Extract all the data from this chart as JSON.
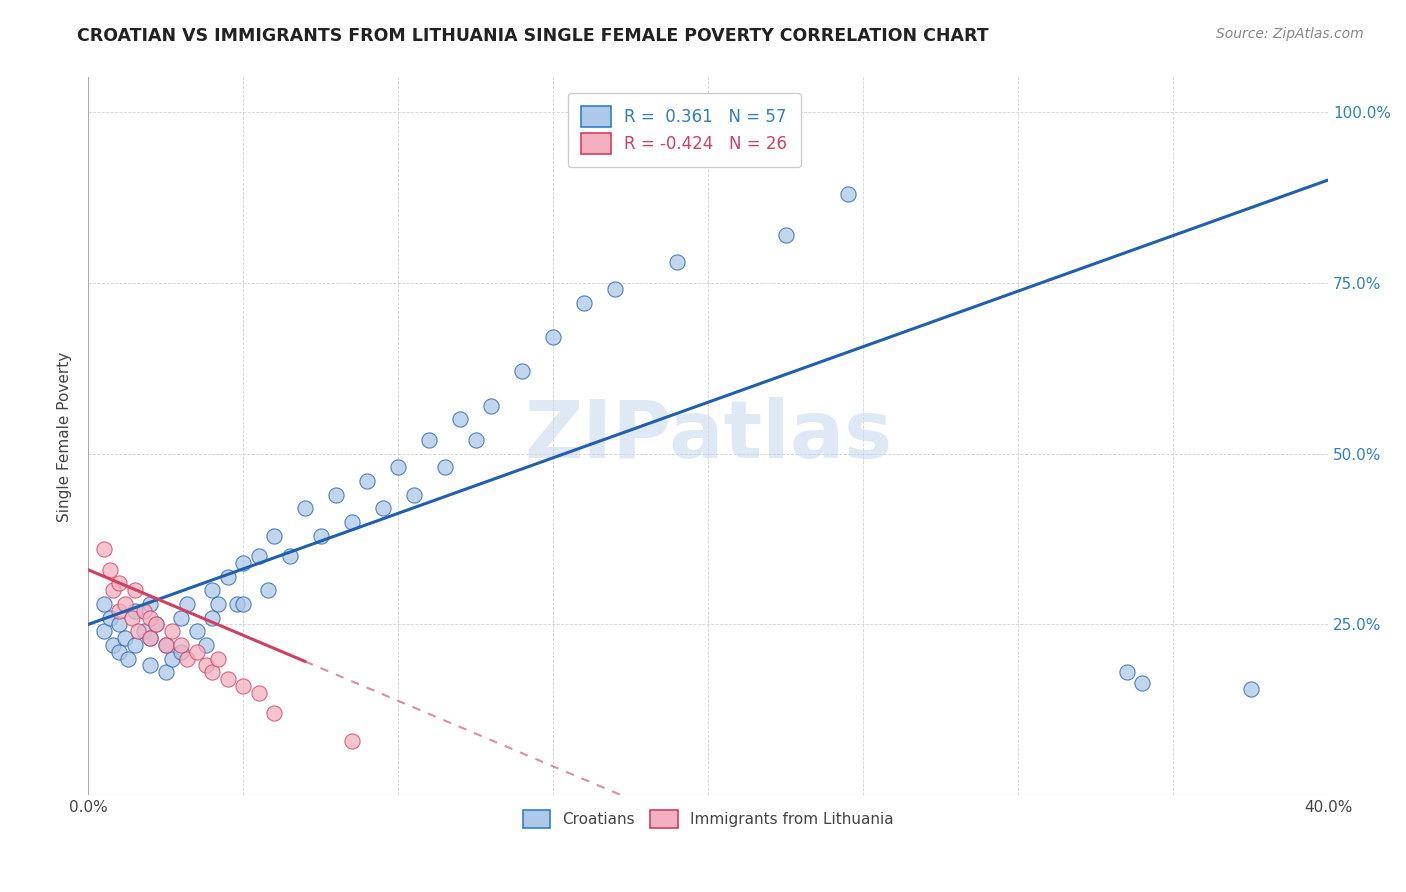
{
  "title": "CROATIAN VS IMMIGRANTS FROM LITHUANIA SINGLE FEMALE POVERTY CORRELATION CHART",
  "source": "Source: ZipAtlas.com",
  "ylabel": "Single Female Poverty",
  "xlim": [
    0.0,
    0.4
  ],
  "ylim": [
    0.0,
    1.05
  ],
  "R_croatian": 0.361,
  "N_croatian": 57,
  "R_lithuania": -0.424,
  "N_lithuania": 26,
  "croatian_color": "#adc8e8",
  "lithuania_color": "#f4afc0",
  "line_croatian_color": "#2060b0",
  "line_lithuania_color": "#d04060",
  "watermark": "ZIPatlas",
  "croatian_x": [
    0.005,
    0.005,
    0.007,
    0.008,
    0.01,
    0.01,
    0.012,
    0.013,
    0.015,
    0.015,
    0.018,
    0.02,
    0.02,
    0.02,
    0.022,
    0.025,
    0.025,
    0.027,
    0.03,
    0.03,
    0.032,
    0.035,
    0.038,
    0.04,
    0.04,
    0.042,
    0.045,
    0.048,
    0.05,
    0.05,
    0.055,
    0.058,
    0.06,
    0.065,
    0.07,
    0.075,
    0.08,
    0.085,
    0.09,
    0.095,
    0.1,
    0.105,
    0.11,
    0.115,
    0.12,
    0.125,
    0.13,
    0.14,
    0.15,
    0.16,
    0.17,
    0.19,
    0.225,
    0.245,
    0.335,
    0.34,
    0.375
  ],
  "croatian_y": [
    0.28,
    0.24,
    0.26,
    0.22,
    0.25,
    0.21,
    0.23,
    0.2,
    0.27,
    0.22,
    0.24,
    0.28,
    0.23,
    0.19,
    0.25,
    0.22,
    0.18,
    0.2,
    0.26,
    0.21,
    0.28,
    0.24,
    0.22,
    0.3,
    0.26,
    0.28,
    0.32,
    0.28,
    0.34,
    0.28,
    0.35,
    0.3,
    0.38,
    0.35,
    0.42,
    0.38,
    0.44,
    0.4,
    0.46,
    0.42,
    0.48,
    0.44,
    0.52,
    0.48,
    0.55,
    0.52,
    0.57,
    0.62,
    0.67,
    0.72,
    0.74,
    0.78,
    0.82,
    0.88,
    0.18,
    0.165,
    0.155
  ],
  "lithuania_x": [
    0.005,
    0.007,
    0.008,
    0.01,
    0.01,
    0.012,
    0.014,
    0.015,
    0.016,
    0.018,
    0.02,
    0.02,
    0.022,
    0.025,
    0.027,
    0.03,
    0.032,
    0.035,
    0.038,
    0.04,
    0.042,
    0.045,
    0.05,
    0.055,
    0.06,
    0.085
  ],
  "lithuania_y": [
    0.36,
    0.33,
    0.3,
    0.31,
    0.27,
    0.28,
    0.26,
    0.3,
    0.24,
    0.27,
    0.26,
    0.23,
    0.25,
    0.22,
    0.24,
    0.22,
    0.2,
    0.21,
    0.19,
    0.18,
    0.2,
    0.17,
    0.16,
    0.15,
    0.12,
    0.08
  ],
  "line_cr_x0": 0.0,
  "line_cr_y0": 0.25,
  "line_cr_x1": 0.4,
  "line_cr_y1": 0.9,
  "line_lt_x0": 0.0,
  "line_lt_y0": 0.33,
  "line_lt_x1": 0.12,
  "line_lt_y1": 0.1
}
